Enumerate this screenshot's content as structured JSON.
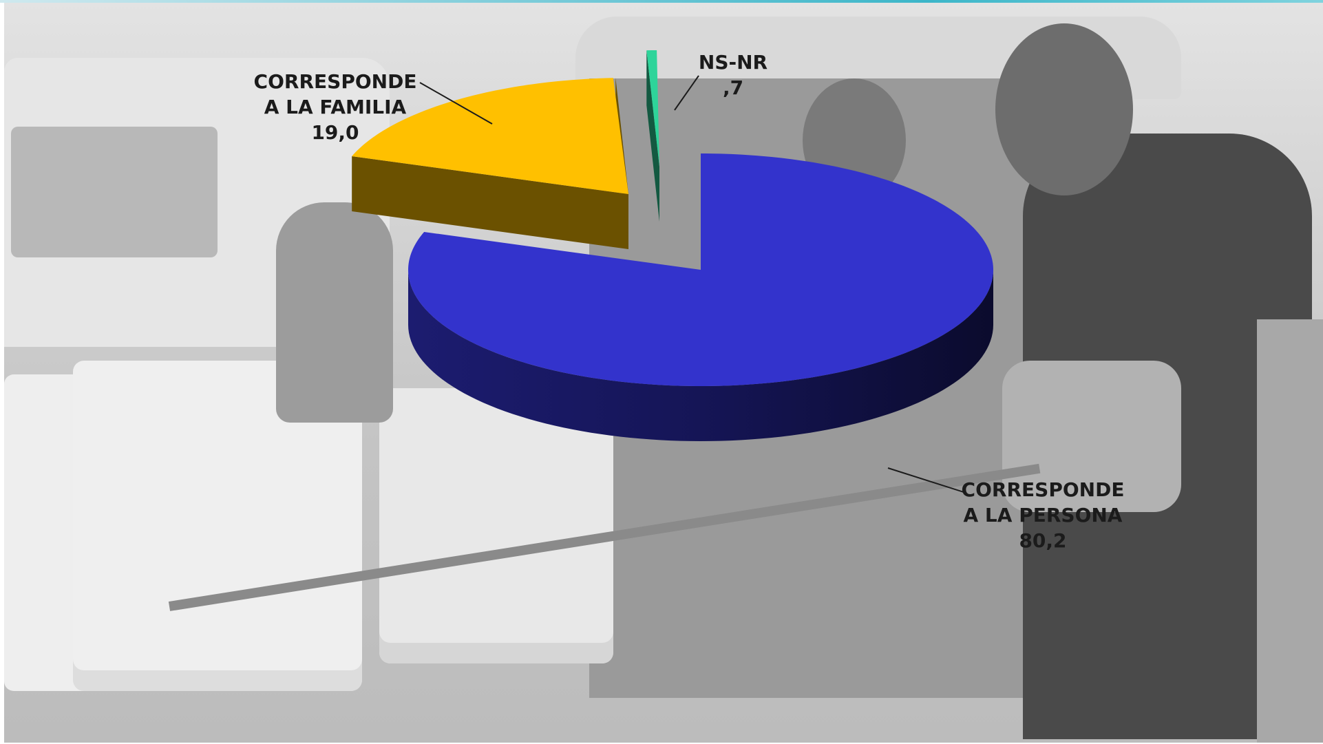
{
  "chart_data": {
    "type": "pie",
    "style": "3d-exploded",
    "background": "grayscale ambulance photograph",
    "slices": [
      {
        "label_line1": "CORRESPONDE",
        "label_line2": "A LA PERSONA",
        "value": 80.2,
        "value_text": "80,2",
        "color": "#3333cc"
      },
      {
        "label_line1": "CORRESPONDE",
        "label_line2": "A LA FAMILIA",
        "value": 19.0,
        "value_text": "19,0",
        "color": "#ffc000"
      },
      {
        "label_line1": "NS-NR",
        "label_line2": "",
        "value": 0.7,
        "value_text": ",7",
        "color": "#2ed49a"
      }
    ]
  }
}
